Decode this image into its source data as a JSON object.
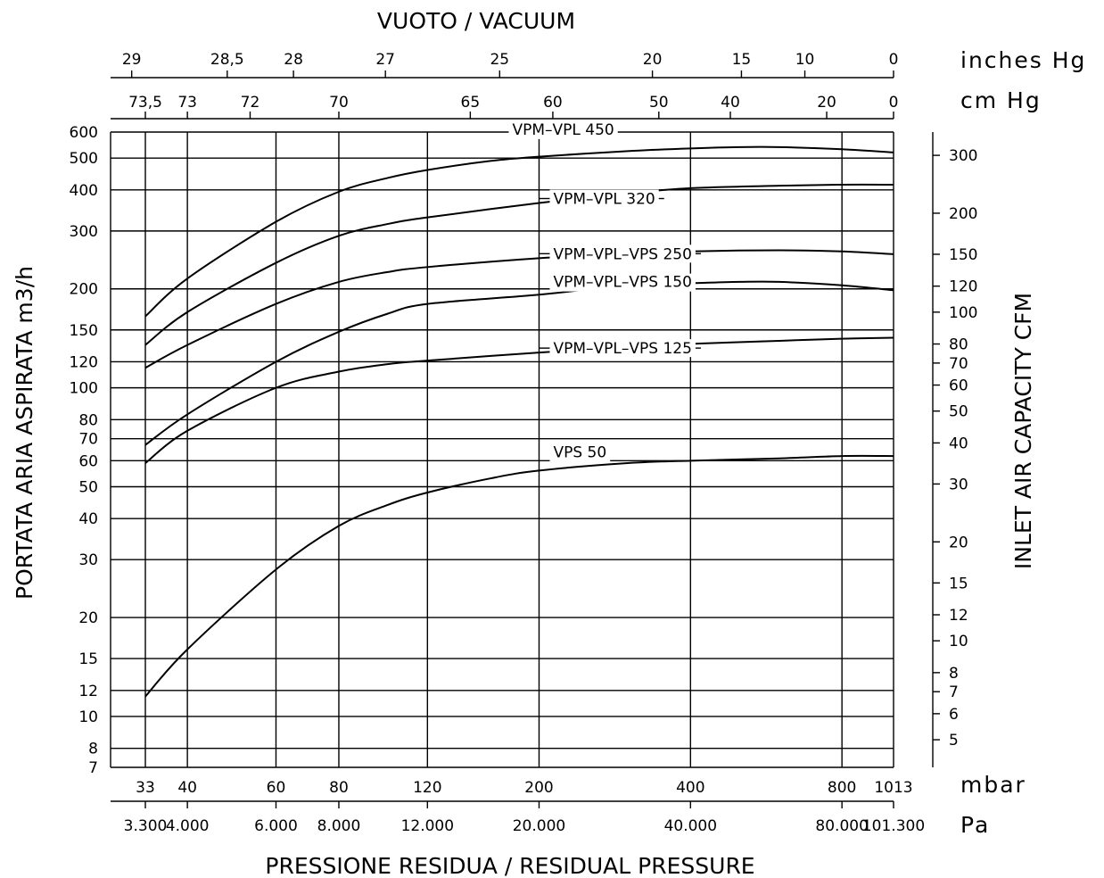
{
  "chart_data": {
    "type": "line",
    "top_title": "VUOTO  /  VACUUM",
    "bottom_title": "PRESSIONE  RESIDUA  /  RESIDUAL  PRESSURE",
    "ylabel_left": "PORTATA  ARIA  ASPIRATA  m3/h",
    "ylabel_right": "INLET  AIR  CAPACITY  CFM",
    "unit_inhg": "inches  Hg",
    "unit_cmhg": "cm  Hg",
    "unit_mbar": "mbar",
    "unit_pa": "Pa",
    "x_scale": "log",
    "y_scale": "log",
    "xlim_mbar": [
      33,
      1013
    ],
    "ylim_m3h": [
      7,
      600
    ],
    "grid": true,
    "x_mbar_ticks": [
      {
        "v": 33,
        "t": "33"
      },
      {
        "v": 40,
        "t": "40"
      },
      {
        "v": 60,
        "t": "60"
      },
      {
        "v": 80,
        "t": "80"
      },
      {
        "v": 120,
        "t": "120"
      },
      {
        "v": 200,
        "t": "200"
      },
      {
        "v": 400,
        "t": "400"
      },
      {
        "v": 800,
        "t": "800"
      },
      {
        "v": 1013,
        "t": "1013"
      }
    ],
    "x_pa_ticks": [
      {
        "v": 33,
        "t": "3.300"
      },
      {
        "v": 40,
        "t": "4.000"
      },
      {
        "v": 60,
        "t": "6.000"
      },
      {
        "v": 80,
        "t": "8.000"
      },
      {
        "v": 120,
        "t": "12.000"
      },
      {
        "v": 200,
        "t": "20.000"
      },
      {
        "v": 400,
        "t": "40.000"
      },
      {
        "v": 800,
        "t": "80.000"
      },
      {
        "v": 1013,
        "t": "101.300"
      }
    ],
    "cmhg_ticks": [
      {
        "v": 33,
        "t": "73,5"
      },
      {
        "v": 40,
        "t": "73"
      },
      {
        "v": 53.3,
        "t": "72"
      },
      {
        "v": 80,
        "t": "70"
      },
      {
        "v": 146,
        "t": "65"
      },
      {
        "v": 213,
        "t": "60"
      },
      {
        "v": 346,
        "t": "50"
      },
      {
        "v": 480,
        "t": "40"
      },
      {
        "v": 746,
        "t": "20"
      },
      {
        "v": 1013,
        "t": "0"
      }
    ],
    "inhg_ticks": [
      {
        "v": 31,
        "t": "29"
      },
      {
        "v": 48,
        "t": "28,5"
      },
      {
        "v": 65,
        "t": "28"
      },
      {
        "v": 99,
        "t": "27"
      },
      {
        "v": 167,
        "t": "25"
      },
      {
        "v": 336,
        "t": "20"
      },
      {
        "v": 505,
        "t": "15"
      },
      {
        "v": 675,
        "t": "10"
      },
      {
        "v": 1013,
        "t": "0"
      }
    ],
    "y_left_ticks": [
      {
        "v": 7,
        "t": "7"
      },
      {
        "v": 8,
        "t": "8"
      },
      {
        "v": 10,
        "t": "10"
      },
      {
        "v": 12,
        "t": "12"
      },
      {
        "v": 15,
        "t": "15"
      },
      {
        "v": 20,
        "t": "20"
      },
      {
        "v": 30,
        "t": "30"
      },
      {
        "v": 40,
        "t": "40"
      },
      {
        "v": 50,
        "t": "50"
      },
      {
        "v": 60,
        "t": "60"
      },
      {
        "v": 70,
        "t": "70"
      },
      {
        "v": 80,
        "t": "80"
      },
      {
        "v": 100,
        "t": "100"
      },
      {
        "v": 120,
        "t": "120"
      },
      {
        "v": 150,
        "t": "150"
      },
      {
        "v": 200,
        "t": "200"
      },
      {
        "v": 300,
        "t": "300"
      },
      {
        "v": 400,
        "t": "400"
      },
      {
        "v": 500,
        "t": "500"
      },
      {
        "v": 600,
        "t": "600"
      }
    ],
    "y_right_ticks_cfm": [
      {
        "v": 5,
        "t": "5"
      },
      {
        "v": 6,
        "t": "6"
      },
      {
        "v": 7,
        "t": "7"
      },
      {
        "v": 8,
        "t": "8"
      },
      {
        "v": 10,
        "t": "10"
      },
      {
        "v": 12,
        "t": "12"
      },
      {
        "v": 15,
        "t": "15"
      },
      {
        "v": 20,
        "t": "20"
      },
      {
        "v": 30,
        "t": "30"
      },
      {
        "v": 40,
        "t": "40"
      },
      {
        "v": 50,
        "t": "50"
      },
      {
        "v": 60,
        "t": "60"
      },
      {
        "v": 70,
        "t": "70"
      },
      {
        "v": 80,
        "t": "80"
      },
      {
        "v": 100,
        "t": "100"
      },
      {
        "v": 120,
        "t": "120"
      },
      {
        "v": 150,
        "t": "150"
      },
      {
        "v": 200,
        "t": "200"
      },
      {
        "v": 300,
        "t": "300"
      }
    ],
    "series": [
      {
        "name": "VPM–VPL  450",
        "label_at": {
          "x": 200,
          "y": 540
        },
        "label_mode": "above",
        "points": [
          [
            33,
            165
          ],
          [
            40,
            215
          ],
          [
            60,
            320
          ],
          [
            80,
            395
          ],
          [
            100,
            435
          ],
          [
            120,
            460
          ],
          [
            160,
            490
          ],
          [
            200,
            505
          ],
          [
            300,
            525
          ],
          [
            400,
            535
          ],
          [
            500,
            540
          ],
          [
            600,
            540
          ],
          [
            800,
            532
          ],
          [
            1013,
            520
          ]
        ]
      },
      {
        "name": "VPM–VPL  320",
        "label_at": {
          "x": 200,
          "y": 365
        },
        "label_mode": "leader",
        "points": [
          [
            33,
            135
          ],
          [
            40,
            170
          ],
          [
            60,
            240
          ],
          [
            80,
            290
          ],
          [
            100,
            315
          ],
          [
            120,
            330
          ],
          [
            200,
            365
          ],
          [
            300,
            390
          ],
          [
            400,
            405
          ],
          [
            600,
            412
          ],
          [
            800,
            415
          ],
          [
            1013,
            415
          ]
        ]
      },
      {
        "name": "VPM–VPL–VPS  250",
        "label_at": {
          "x": 200,
          "y": 248
        },
        "label_mode": "leader",
        "points": [
          [
            33,
            115
          ],
          [
            40,
            135
          ],
          [
            60,
            180
          ],
          [
            80,
            210
          ],
          [
            100,
            225
          ],
          [
            120,
            233
          ],
          [
            200,
            248
          ],
          [
            300,
            256
          ],
          [
            400,
            260
          ],
          [
            600,
            262
          ],
          [
            800,
            260
          ],
          [
            1013,
            255
          ]
        ]
      },
      {
        "name": "VPM–VPL–VPS  150",
        "label_at": {
          "x": 200,
          "y": 188
        },
        "label_mode": "above",
        "points": [
          [
            33,
            67
          ],
          [
            40,
            83
          ],
          [
            60,
            120
          ],
          [
            80,
            148
          ],
          [
            100,
            168
          ],
          [
            120,
            180
          ],
          [
            200,
            192
          ],
          [
            300,
            205
          ],
          [
            400,
            208
          ],
          [
            500,
            210
          ],
          [
            600,
            210
          ],
          [
            800,
            205
          ],
          [
            1013,
            198
          ]
        ]
      },
      {
        "name": "VPM–VPL–VPS  125",
        "label_at": {
          "x": 200,
          "y": 128
        },
        "label_mode": "leader",
        "points": [
          [
            33,
            59
          ],
          [
            40,
            74
          ],
          [
            60,
            100
          ],
          [
            80,
            112
          ],
          [
            100,
            118
          ],
          [
            120,
            121
          ],
          [
            200,
            128
          ],
          [
            300,
            133
          ],
          [
            400,
            136
          ],
          [
            600,
            139
          ],
          [
            800,
            141
          ],
          [
            1013,
            142
          ]
        ]
      },
      {
        "name": "VPS  50",
        "label_at": {
          "x": 200,
          "y": 57
        },
        "label_mode": "above",
        "points": [
          [
            33,
            11.5
          ],
          [
            40,
            16
          ],
          [
            60,
            28
          ],
          [
            80,
            38
          ],
          [
            100,
            44
          ],
          [
            120,
            48
          ],
          [
            160,
            53
          ],
          [
            200,
            56
          ],
          [
            300,
            59
          ],
          [
            400,
            60
          ],
          [
            600,
            61
          ],
          [
            800,
            62
          ],
          [
            1013,
            62
          ]
        ]
      }
    ]
  }
}
